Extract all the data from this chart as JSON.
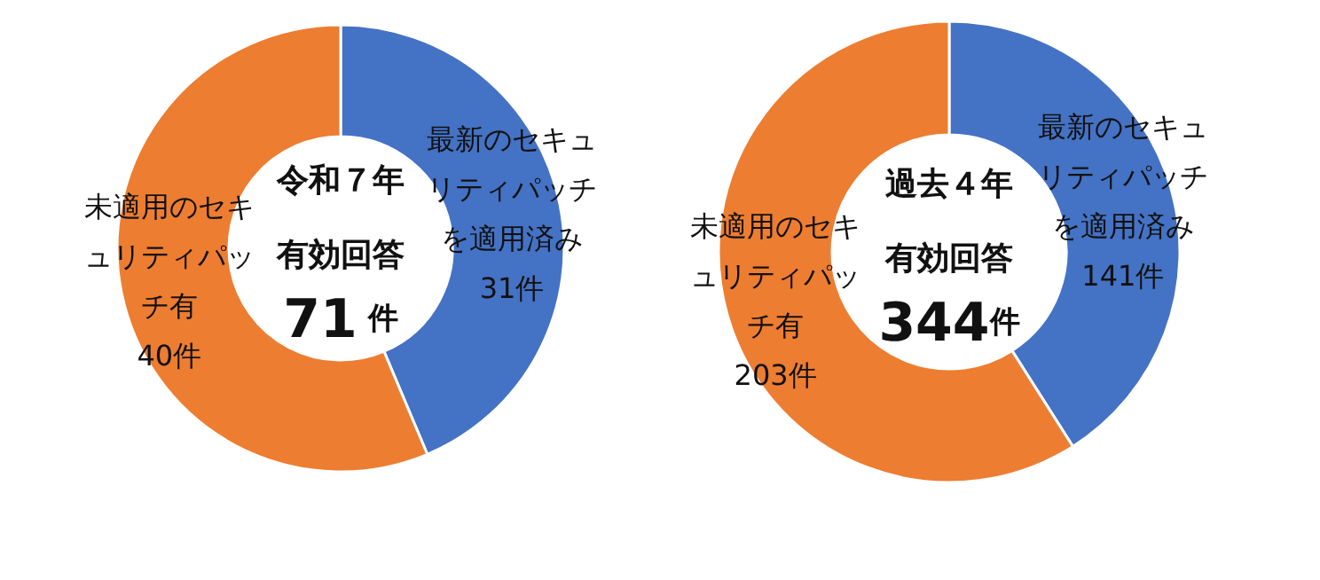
{
  "chart_data": [
    {
      "type": "donut",
      "title": "令和７年",
      "subtitle": "有効回答",
      "annotations": [
        "71 件"
      ],
      "categories": [
        "最新のセキュリティパッチを適用済み",
        "未適用のセキュリティパッチ有"
      ],
      "values": [
        31,
        40
      ],
      "value_labels": [
        "31件",
        "40件"
      ],
      "colors": [
        "#4472c4",
        "#ed7d31"
      ]
    },
    {
      "type": "donut",
      "title": "過去４年",
      "subtitle": "有効回答",
      "annotations": [
        "344件"
      ],
      "categories": [
        "最新のセキュリティパッチを適用済み",
        "未適用のセキュリティパッチ有"
      ],
      "values": [
        141,
        203
      ],
      "value_labels": [
        "141件",
        "203件"
      ],
      "colors": [
        "#4472c4",
        "#ed7d31"
      ]
    }
  ]
}
